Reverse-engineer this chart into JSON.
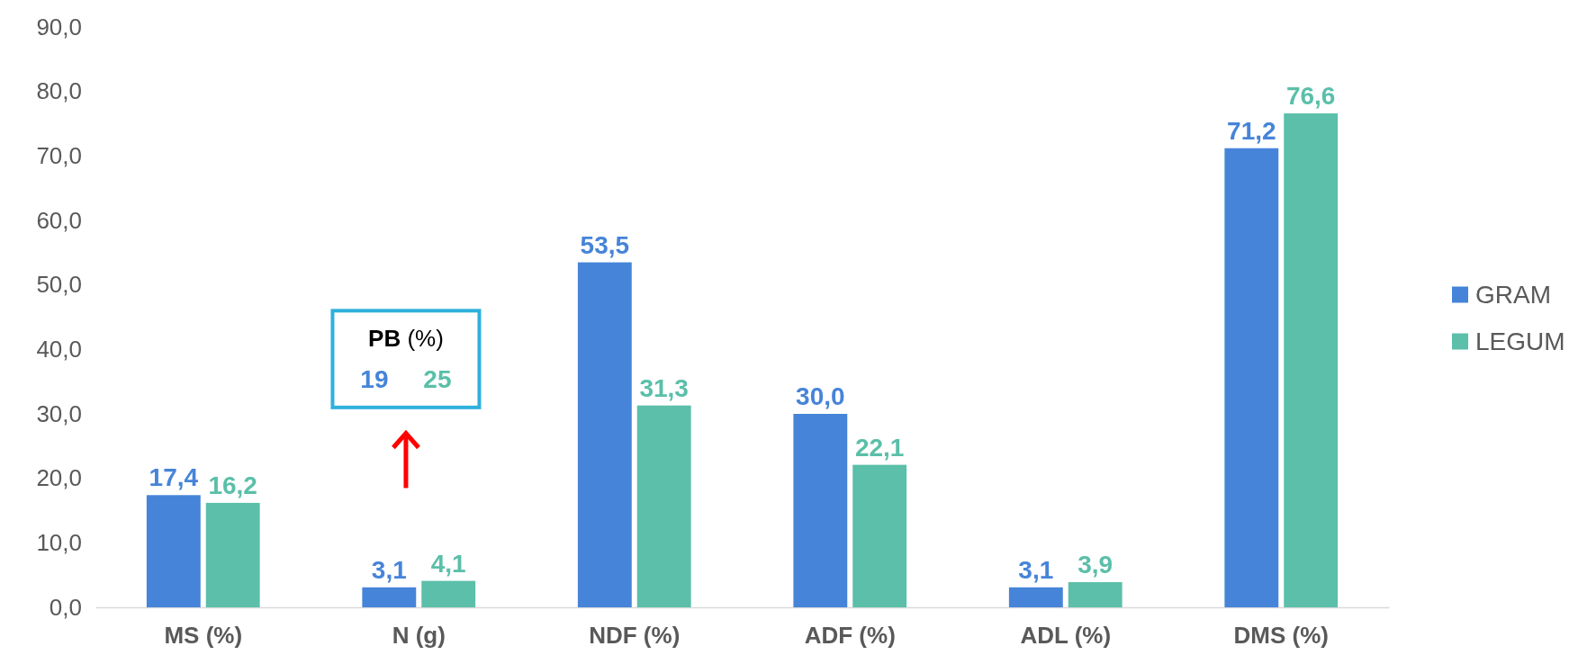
{
  "chart_data": {
    "type": "bar",
    "categories": [
      "MS (%)",
      "N (g)",
      "NDF (%)",
      "ADF (%)",
      "ADL (%)",
      "DMS (%)"
    ],
    "series": [
      {
        "name": "GRAM",
        "color": "#4684d9",
        "values": [
          17.4,
          3.1,
          53.5,
          30.0,
          3.1,
          71.2
        ],
        "value_labels": [
          "17,4",
          "3,1",
          "53,5",
          "30,0",
          "3,1",
          "71,2"
        ]
      },
      {
        "name": "LEGUM",
        "color": "#5bbfa9",
        "values": [
          16.2,
          4.1,
          31.3,
          22.1,
          3.9,
          76.6
        ],
        "value_labels": [
          "16,2",
          "4,1",
          "31,3",
          "22,1",
          "3,9",
          "76,6"
        ]
      }
    ],
    "ylim": [
      0,
      90
    ],
    "yticks": [
      {
        "value": 0,
        "label": "0,0"
      },
      {
        "value": 10,
        "label": "10,0"
      },
      {
        "value": 20,
        "label": "20,0"
      },
      {
        "value": 30,
        "label": "30,0"
      },
      {
        "value": 40,
        "label": "40,0"
      },
      {
        "value": 50,
        "label": "50,0"
      },
      {
        "value": 60,
        "label": "60,0"
      },
      {
        "value": 70,
        "label": "70,0"
      },
      {
        "value": 80,
        "label": "80,0"
      },
      {
        "value": 90,
        "label": "90,0"
      }
    ],
    "grid": false,
    "legend": "right",
    "annotations": [
      "PB (%)",
      "19",
      "25"
    ]
  }
}
